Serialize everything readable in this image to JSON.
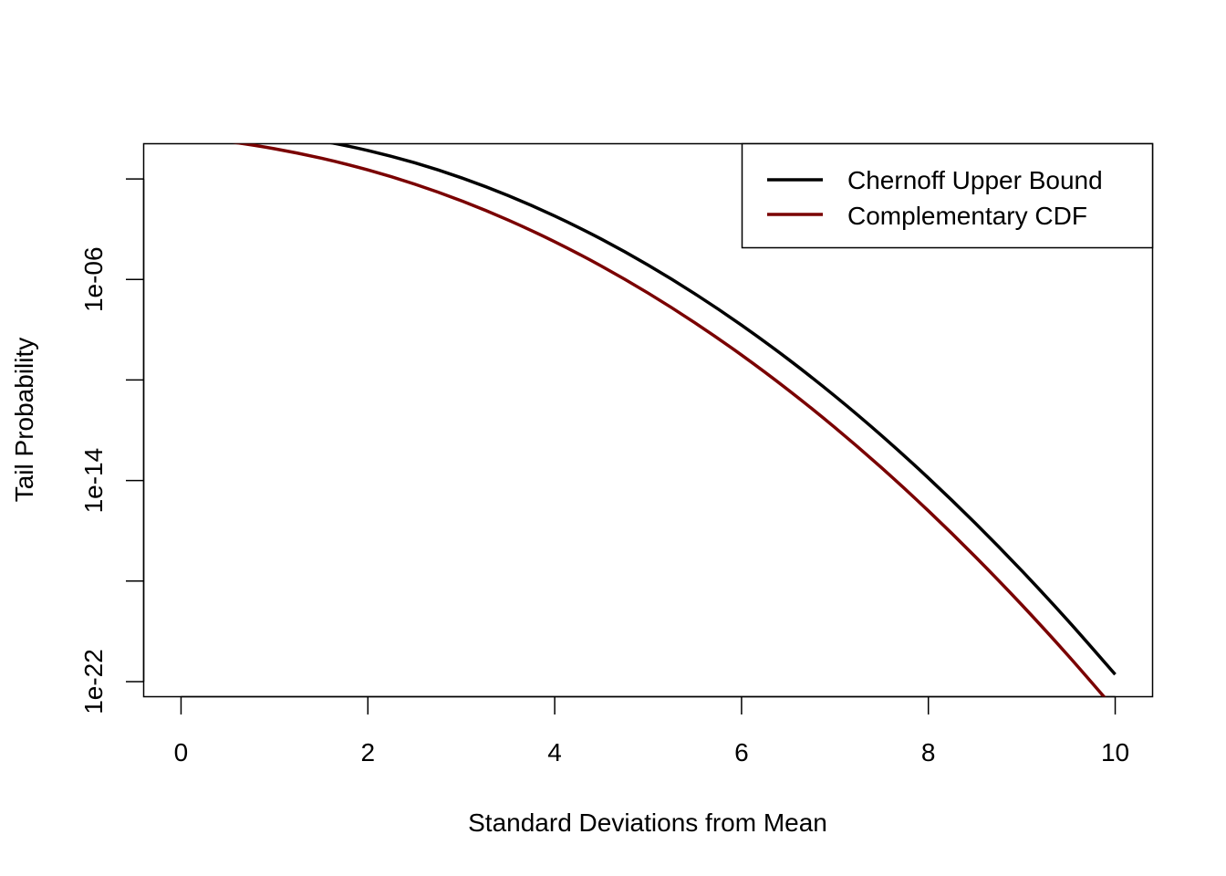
{
  "chart_data": {
    "type": "line",
    "title": "",
    "xlabel": "Standard Deviations from Mean",
    "ylabel": "Tail Probability",
    "y_scale": "log10",
    "xlim": [
      0,
      10
    ],
    "ylim_log10": [
      -22.6,
      -0.6
    ],
    "x_ticks": [
      0,
      2,
      4,
      6,
      8,
      10
    ],
    "x_tick_labels": [
      "0",
      "2",
      "4",
      "6",
      "8",
      "10"
    ],
    "y_ticks_log10": [
      -26,
      -22,
      -18,
      -14,
      -10,
      -6,
      -2
    ],
    "y_tick_labels": [
      "",
      "1e-22",
      "",
      "1e-14",
      "",
      "1e-06",
      ""
    ],
    "grid": false,
    "legend_position": "top-right",
    "series": [
      {
        "name": "Chernoff Upper Bound",
        "color": "#000000",
        "x": [
          0,
          0.5,
          1,
          1.5,
          2,
          2.5,
          3,
          3.5,
          4,
          4.5,
          5,
          5.5,
          6,
          6.5,
          7,
          7.5,
          8,
          8.5,
          9,
          9.5,
          10
        ],
        "y": [
          1,
          0.8825,
          0.6065,
          0.3247,
          0.1353,
          0.04394,
          0.01111,
          0.002187,
          0.0003355,
          4.008e-05,
          3.727e-06,
          2.699e-07,
          1.523e-08,
          6.69e-10,
          2.289e-11,
          6.101e-13,
          1.266e-14,
          2.048e-16,
          2.577e-18,
          2.527e-20,
          1.929e-22
        ]
      },
      {
        "name": "Complementary CDF",
        "color": "#7a0000",
        "x": [
          0,
          0.5,
          1,
          1.5,
          2,
          2.5,
          3,
          3.5,
          4,
          4.5,
          5,
          5.5,
          6,
          6.5,
          7,
          7.5,
          8,
          8.5,
          9,
          9.5,
          10
        ],
        "y": [
          0.5,
          0.3085,
          0.1587,
          0.06681,
          0.02275,
          0.00621,
          0.00135,
          0.0002326,
          3.167e-05,
          3.398e-06,
          2.867e-07,
          1.899e-08,
          9.866e-10,
          4.016e-11,
          1.28e-12,
          3.191e-14,
          6.221e-16,
          9.48e-18,
          1.129e-19,
          1.049e-21,
          7.62e-24
        ]
      }
    ]
  }
}
